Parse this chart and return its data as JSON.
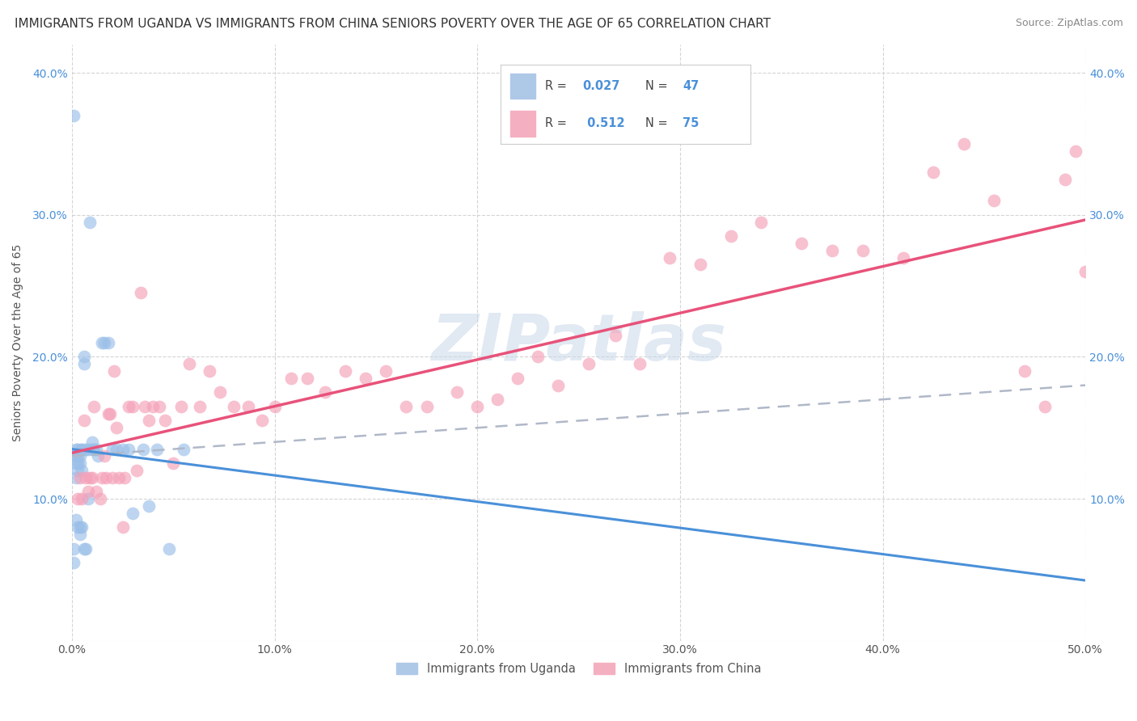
{
  "title": "IMMIGRANTS FROM UGANDA VS IMMIGRANTS FROM CHINA SENIORS POVERTY OVER THE AGE OF 65 CORRELATION CHART",
  "source": "Source: ZipAtlas.com",
  "ylabel": "Seniors Poverty Over the Age of 65",
  "xlim": [
    0,
    0.5
  ],
  "ylim": [
    0,
    0.42
  ],
  "xticks": [
    0.0,
    0.1,
    0.2,
    0.3,
    0.4,
    0.5
  ],
  "xticklabels": [
    "0.0%",
    "10.0%",
    "20.0%",
    "30.0%",
    "40.0%",
    "50.0%"
  ],
  "yticks": [
    0.0,
    0.1,
    0.2,
    0.3,
    0.4
  ],
  "yticklabels": [
    "",
    "10.0%",
    "20.0%",
    "30.0%",
    "40.0%"
  ],
  "uganda_x": [
    0.001,
    0.001,
    0.001,
    0.002,
    0.002,
    0.002,
    0.002,
    0.002,
    0.003,
    0.003,
    0.003,
    0.003,
    0.003,
    0.004,
    0.004,
    0.004,
    0.004,
    0.005,
    0.005,
    0.005,
    0.005,
    0.006,
    0.006,
    0.006,
    0.007,
    0.007,
    0.008,
    0.008,
    0.009,
    0.01,
    0.01,
    0.011,
    0.012,
    0.013,
    0.015,
    0.016,
    0.018,
    0.02,
    0.022,
    0.025,
    0.028,
    0.03,
    0.035,
    0.038,
    0.042,
    0.048,
    0.055
  ],
  "uganda_y": [
    0.37,
    0.065,
    0.055,
    0.135,
    0.13,
    0.125,
    0.115,
    0.085,
    0.135,
    0.13,
    0.125,
    0.12,
    0.08,
    0.13,
    0.125,
    0.08,
    0.075,
    0.135,
    0.135,
    0.12,
    0.08,
    0.2,
    0.195,
    0.065,
    0.135,
    0.065,
    0.135,
    0.1,
    0.295,
    0.14,
    0.135,
    0.135,
    0.135,
    0.13,
    0.21,
    0.21,
    0.21,
    0.135,
    0.135,
    0.135,
    0.135,
    0.09,
    0.135,
    0.095,
    0.135,
    0.065,
    0.135
  ],
  "china_x": [
    0.003,
    0.004,
    0.005,
    0.006,
    0.007,
    0.008,
    0.009,
    0.01,
    0.011,
    0.012,
    0.014,
    0.015,
    0.016,
    0.017,
    0.018,
    0.019,
    0.02,
    0.021,
    0.022,
    0.023,
    0.025,
    0.026,
    0.028,
    0.03,
    0.032,
    0.034,
    0.036,
    0.038,
    0.04,
    0.043,
    0.046,
    0.05,
    0.054,
    0.058,
    0.063,
    0.068,
    0.073,
    0.08,
    0.087,
    0.094,
    0.1,
    0.108,
    0.116,
    0.125,
    0.135,
    0.145,
    0.155,
    0.165,
    0.175,
    0.19,
    0.2,
    0.21,
    0.22,
    0.23,
    0.24,
    0.255,
    0.268,
    0.28,
    0.295,
    0.31,
    0.325,
    0.34,
    0.36,
    0.375,
    0.39,
    0.41,
    0.425,
    0.44,
    0.455,
    0.47,
    0.48,
    0.49,
    0.495,
    0.5,
    0.505
  ],
  "china_y": [
    0.1,
    0.115,
    0.1,
    0.155,
    0.115,
    0.105,
    0.115,
    0.115,
    0.165,
    0.105,
    0.1,
    0.115,
    0.13,
    0.115,
    0.16,
    0.16,
    0.115,
    0.19,
    0.15,
    0.115,
    0.08,
    0.115,
    0.165,
    0.165,
    0.12,
    0.245,
    0.165,
    0.155,
    0.165,
    0.165,
    0.155,
    0.125,
    0.165,
    0.195,
    0.165,
    0.19,
    0.175,
    0.165,
    0.165,
    0.155,
    0.165,
    0.185,
    0.185,
    0.175,
    0.19,
    0.185,
    0.19,
    0.165,
    0.165,
    0.175,
    0.165,
    0.17,
    0.185,
    0.2,
    0.18,
    0.195,
    0.215,
    0.195,
    0.27,
    0.265,
    0.285,
    0.295,
    0.28,
    0.275,
    0.275,
    0.27,
    0.33,
    0.35,
    0.31,
    0.19,
    0.165,
    0.325,
    0.345,
    0.26,
    0.24
  ],
  "watermark_text": "ZIPatlas",
  "bg_color": "#ffffff",
  "grid_color": "#d0d0d0",
  "scatter_color_uganda": "#9abfe8",
  "scatter_color_china": "#f4a0b8",
  "line_color_uganda": "#4a90d9",
  "line_color_china": "#e8527a",
  "tick_color_right": "#4a90d9",
  "tick_color_left": "#4a90d9",
  "title_fontsize": 11,
  "axis_fontsize": 10
}
